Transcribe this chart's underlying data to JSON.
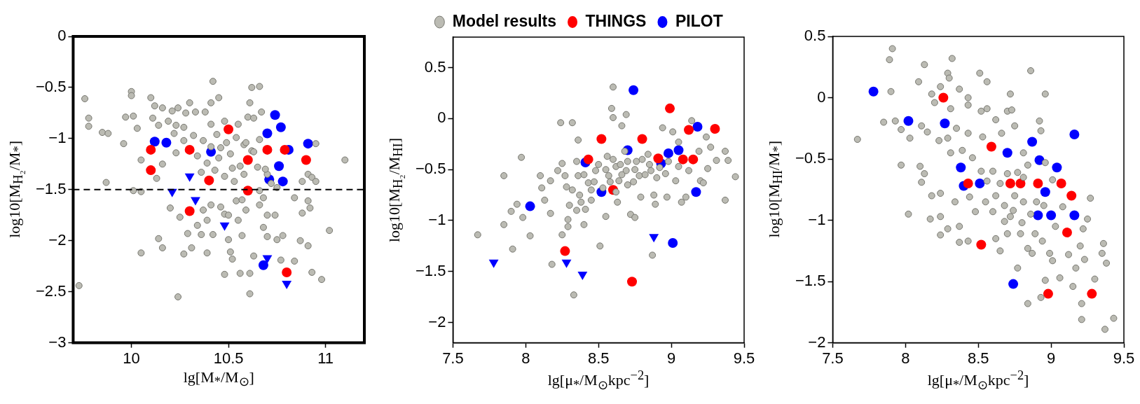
{
  "chart_data": [
    {
      "type": "scatter",
      "xlabel": "lg[M$_{*}$/M$_{⊙}$]",
      "ylabel": "log10[M$_{H₂}$/M$_{*}$]",
      "xlim": [
        9.7,
        11.2
      ],
      "ylim": [
        -3,
        0
      ],
      "xticks": [
        10,
        10.5,
        11
      ],
      "yticks": [
        -3,
        -2.5,
        -2,
        -1.5,
        -1,
        -0.5,
        0
      ],
      "grid": false,
      "legend": false,
      "marker": "circle",
      "ref_lines": [
        {
          "axis": "y",
          "value": -1.5,
          "color": "#000000",
          "line_style": "dashed"
        }
      ],
      "series": [
        {
          "color": "#bbbbb3",
          "x": [
            9.76,
            9.78,
            9.78,
            9.73,
            9.85,
            9.88,
            9.96,
            9.87,
            10.0,
            10.0,
            9.97,
            10.01,
            10.03,
            10.01,
            10.05,
            10.05,
            10.05,
            10.1,
            10.12,
            10.16,
            10.11,
            10.14,
            10.21,
            10.24,
            10.3,
            10.28,
            10.19,
            10.23,
            10.27,
            10.33,
            10.38,
            10.41,
            10.45,
            10.42,
            10.41,
            10.48,
            10.62,
            10.66,
            10.61,
            10.55,
            10.6,
            10.63,
            10.67,
            10.32,
            10.37,
            10.44,
            10.49,
            10.54,
            10.58,
            10.34,
            10.39,
            10.45,
            10.51,
            10.56,
            10.62,
            10.36,
            10.43,
            10.48,
            10.53,
            10.58,
            10.65,
            10.27,
            10.22,
            10.46,
            10.41,
            10.52,
            10.16,
            10.13,
            10.23,
            10.14,
            10.16,
            10.2,
            10.25,
            10.27,
            10.31,
            10.29,
            10.34,
            10.36,
            10.39,
            10.37,
            10.41,
            10.39,
            10.42,
            10.46,
            10.48,
            10.5,
            10.5,
            10.51,
            10.52,
            10.48,
            10.56,
            10.61,
            10.61,
            10.24,
            10.55,
            10.57,
            10.59,
            10.66,
            10.63,
            10.68,
            10.7,
            10.7,
            10.74,
            10.75,
            10.78,
            10.77,
            10.84,
            10.87,
            10.91,
            10.93,
            10.98,
            11.02,
            11.1,
            10.95,
            10.84,
            10.88,
            10.91,
            10.93,
            10.88,
            10.91,
            10.92,
            10.95,
            10.68,
            10.7,
            10.72,
            10.75,
            10.54,
            10.57,
            10.66,
            10.69,
            10.59,
            10.63,
            10.66
          ],
          "values": [
            -0.61,
            -0.8,
            -0.88,
            -2.44,
            -0.94,
            -0.95,
            -1.05,
            -1.43,
            -0.54,
            -0.58,
            -0.79,
            -0.78,
            -0.9,
            -1.51,
            -1.52,
            -1.21,
            -2.12,
            -0.6,
            -0.68,
            -0.7,
            -0.8,
            -0.87,
            -0.73,
            -0.7,
            -0.65,
            -0.75,
            -0.83,
            -0.87,
            -0.89,
            -0.74,
            -0.74,
            -0.65,
            -0.6,
            -0.44,
            -0.86,
            -0.83,
            -0.5,
            -0.49,
            -0.65,
            -0.86,
            -0.79,
            -0.8,
            -0.74,
            -0.97,
            -1.02,
            -0.96,
            -1.04,
            -0.99,
            -1.06,
            -1.17,
            -1.24,
            -1.19,
            -1.15,
            -1.27,
            -1.12,
            -1.33,
            -1.31,
            -1.37,
            -1.42,
            -1.35,
            -1.28,
            -1.02,
            -0.95,
            -1.09,
            -1.08,
            -1.29,
            -1.25,
            -1.39,
            -1.14,
            -1.98,
            -2.07,
            -1.68,
            -1.77,
            -2.13,
            -2.07,
            -1.93,
            -1.85,
            -1.94,
            -2.12,
            -1.7,
            -1.65,
            -1.8,
            -1.94,
            -1.67,
            -1.74,
            -1.75,
            -1.99,
            -2.11,
            -2.18,
            -2.33,
            -2.32,
            -2.32,
            -2.52,
            -2.55,
            -1.8,
            -1.95,
            -1.7,
            -1.65,
            -2.15,
            -1.87,
            -1.96,
            -1.75,
            -1.75,
            -1.99,
            -1.95,
            -2.19,
            -2.2,
            -2.0,
            -2.05,
            -2.31,
            -2.38,
            -1.9,
            -1.21,
            -1.05,
            -1.58,
            -1.42,
            -1.35,
            -1.38,
            -1.73,
            -1.61,
            -1.68,
            -1.42,
            -1.58,
            -1.35,
            -1.44,
            -1.48,
            -1.61,
            -1.6,
            -1.51,
            -1.3,
            -1.04,
            -1.13,
            -1.01
          ]
        },
        {
          "color": "#ff0000",
          "x": [
            10.1,
            10.1,
            10.3,
            10.4,
            10.5,
            10.6,
            10.6,
            10.3,
            10.7,
            10.79,
            10.9,
            10.8
          ],
          "values": [
            -1.11,
            -1.31,
            -1.11,
            -1.41,
            -0.91,
            -1.21,
            -1.51,
            -1.71,
            -1.11,
            -1.11,
            -1.21,
            -2.31
          ]
        },
        {
          "color": "#0000ff",
          "x": [
            10.12,
            10.18,
            10.41,
            10.74,
            10.77,
            10.7,
            10.81,
            10.91,
            10.76,
            10.71,
            10.78,
            10.68
          ],
          "values": [
            -1.03,
            -1.04,
            -1.13,
            -0.77,
            -0.89,
            -0.95,
            -1.11,
            -1.05,
            -1.27,
            -1.4,
            -1.42,
            -2.24
          ]
        },
        {
          "color": "#0000ff",
          "marker": "triangle",
          "x": [
            10.3,
            10.21,
            10.33,
            10.48,
            10.7,
            10.8
          ],
          "values": [
            -1.37,
            -1.52,
            -1.6,
            -1.85,
            -2.17,
            -2.42
          ]
        }
      ]
    },
    {
      "type": "scatter",
      "xlabel": "lg[μ$_{*}$/M$_{⊙}$kpc$^{−2}$]",
      "ylabel": "log10[M$_{H₂}$/M$_{HI}$]",
      "xlim": [
        7.5,
        9.5
      ],
      "ylim": [
        -2.2,
        0.8
      ],
      "xticks": [
        7.5,
        8,
        8.5,
        9,
        9.5
      ],
      "yticks": [
        -2,
        -1.5,
        -1,
        -0.5,
        0,
        0.5
      ],
      "grid": false,
      "legend": "top",
      "marker": "circle",
      "series": [
        {
          "name": "Model results",
          "color": "#bbbbb3",
          "x": [
            8.6,
            8.59,
            8.6,
            8.69,
            8.66,
            8.24,
            8.32,
            8.36,
            7.97,
            7.85,
            7.67,
            7.85,
            7.91,
            7.98,
            8.03,
            7.9,
            7.94,
            8.1,
            8.11,
            8.13,
            8.17,
            8.17,
            8.22,
            8.25,
            8.27,
            8.28,
            8.25,
            8.18,
            8.29,
            8.29,
            8.33,
            8.4,
            8.35,
            8.36,
            8.37,
            8.41,
            8.43,
            8.45,
            8.48,
            8.51,
            8.55,
            8.56,
            8.57,
            8.62,
            8.64,
            8.63,
            8.68,
            8.69,
            8.7,
            8.72,
            8.75,
            8.76,
            8.78,
            8.79,
            8.84,
            8.86,
            8.88,
            8.89,
            8.87,
            8.94,
            8.96,
            8.97,
            9.01,
            9.03,
            9.05,
            9.07,
            9.1,
            9.14,
            9.12,
            9.19,
            9.2,
            9.24,
            9.25,
            9.27,
            9.31,
            9.37,
            9.39,
            9.44,
            9.37,
            9.22,
            8.5,
            8.55,
            8.6,
            8.65,
            8.7,
            8.75,
            8.8,
            8.85,
            8.58,
            8.66,
            8.74,
            8.82,
            8.9,
            8.47,
            8.53,
            8.62,
            8.92,
            8.98,
            9.05,
            8.4,
            8.45,
            8.32,
            8.3,
            8.35,
            8.38
          ],
          "values": [
            0.31,
            0.1,
            0.01,
            0.04,
            -0.07,
            -0.04,
            -0.04,
            -0.21,
            -0.38,
            -0.56,
            -1.14,
            -1.04,
            -1.28,
            -0.97,
            -1.15,
            -0.91,
            -0.84,
            -0.56,
            -0.68,
            -0.8,
            -0.61,
            -0.93,
            -0.51,
            -0.44,
            -0.56,
            -0.67,
            -1.14,
            -1.43,
            -0.99,
            -1.06,
            -1.73,
            -1.04,
            -0.42,
            -0.56,
            -0.75,
            -0.89,
            -0.63,
            -0.8,
            -0.51,
            -1.25,
            -0.96,
            -0.37,
            -0.56,
            -0.47,
            -0.61,
            -0.82,
            -0.32,
            -0.51,
            -0.65,
            -0.94,
            -0.97,
            -0.42,
            -0.56,
            -0.77,
            -0.35,
            -0.51,
            -0.75,
            -0.84,
            -1.34,
            -0.09,
            -0.54,
            -0.77,
            -0.13,
            -0.61,
            -0.23,
            -0.82,
            -0.77,
            -0.02,
            -0.51,
            -0.32,
            -0.61,
            -0.18,
            -0.49,
            -0.28,
            -0.41,
            -0.32,
            -0.41,
            -0.57,
            -0.8,
            -0.63,
            -0.45,
            -0.5,
            -0.4,
            -0.45,
            -0.42,
            -0.5,
            -0.4,
            -0.45,
            -0.62,
            -0.55,
            -0.62,
            -0.55,
            -0.58,
            -0.62,
            -0.68,
            -0.72,
            -0.48,
            -0.42,
            -0.47,
            -0.55,
            -0.7,
            -0.7,
            -0.85,
            -0.9,
            -0.82
          ]
        },
        {
          "name": "THINGS",
          "color": "#ff0000",
          "x": [
            8.52,
            8.8,
            8.99,
            9.12,
            9.3,
            8.43,
            8.91,
            9.08,
            9.15,
            8.6,
            8.27,
            8.73
          ],
          "values": [
            -0.2,
            -0.2,
            0.1,
            -0.11,
            -0.1,
            -0.4,
            -0.39,
            -0.4,
            -0.4,
            -0.7,
            -1.3,
            -1.6
          ]
        },
        {
          "name": "PILOT",
          "color": "#0000ff",
          "x": [
            8.74,
            9.18,
            8.7,
            8.98,
            9.05,
            8.93,
            8.41,
            8.52,
            9.17,
            8.03,
            9.01
          ],
          "values": [
            0.28,
            -0.08,
            -0.31,
            -0.34,
            -0.31,
            -0.44,
            -0.43,
            -0.72,
            -0.72,
            -0.86,
            -1.22
          ]
        },
        {
          "color": "#0000ff",
          "marker": "triangle",
          "x": [
            7.78,
            8.28,
            8.39,
            8.88
          ],
          "values": [
            -1.41,
            -1.41,
            -1.53,
            -1.16
          ]
        }
      ]
    },
    {
      "type": "scatter",
      "xlabel": "lg[μ$_{*}$/M$_{⊙}$kpc$^{−2}$]",
      "ylabel": "log10[M$_{HI}$/M$_{*}$]",
      "xlim": [
        7.5,
        9.5
      ],
      "ylim": [
        -2,
        0.5
      ],
      "xticks": [
        7.5,
        8,
        8.5,
        9,
        9.5
      ],
      "yticks": [
        -2,
        -1.5,
        -1,
        -0.5,
        0,
        0.5
      ],
      "grid": false,
      "legend": false,
      "marker": "circle",
      "series": [
        {
          "color": "#bbbbb3",
          "x": [
            7.91,
            7.89,
            8.13,
            8.32,
            8.29,
            8.3,
            8.09,
            7.9,
            8.24,
            8.18,
            8.37,
            8.43,
            8.51,
            8.56,
            8.86,
            8.96,
            8.72,
            8.2,
            8.31,
            8.43,
            8.52,
            8.56,
            8.7,
            8.73,
            8.62,
            7.85,
            7.93,
            7.97,
            8.03,
            8.11,
            8.15,
            7.67,
            8.75,
            8.92,
            8.93,
            8.23,
            8.29,
            8.35,
            8.43,
            8.53,
            8.66,
            8.81,
            7.97,
            8.1,
            8.13,
            8.11,
            8.02,
            8.17,
            8.24,
            8.18,
            8.24,
            8.24,
            8.29,
            8.37,
            8.37,
            8.43,
            8.31,
            8.39,
            8.46,
            8.34,
            8.44,
            8.48,
            8.55,
            8.6,
            8.62,
            8.65,
            8.68,
            8.7,
            8.72,
            8.79,
            8.77,
            8.84,
            8.84,
            8.87,
            8.89,
            8.94,
            8.99,
            9.01,
            8.96,
            9.06,
            8.93,
            9.15,
            9.21,
            9.21,
            9.3,
            9.37,
            9.43,
            9.36,
            9.35,
            9.38,
            9.2,
            9.23,
            9.12,
            9.17,
            9.25,
            9.22,
            9.27,
            9.08,
            9.03,
            8.81,
            8.86,
            8.77,
            8.81,
            8.84,
            8.96,
            9.01,
            8.6,
            8.65,
            8.7,
            8.62,
            8.68,
            8.75,
            8.56,
            8.52,
            8.9,
            8.95,
            8.8,
            8.74
          ],
          "values": [
            0.4,
            0.31,
            0.27,
            0.32,
            0.2,
            0.16,
            0.13,
            0.05,
            0.09,
            0.03,
            0.07,
            0.0,
            0.2,
            0.13,
            0.22,
            0.03,
            0.03,
            -0.04,
            -0.09,
            -0.06,
            -0.11,
            -0.09,
            -0.11,
            -0.1,
            -0.18,
            -0.2,
            -0.19,
            -0.26,
            -0.33,
            -0.23,
            -0.28,
            -0.34,
            -0.23,
            -0.19,
            -0.27,
            -0.35,
            -0.33,
            -0.25,
            -0.29,
            -0.32,
            -0.29,
            -0.45,
            -0.55,
            -0.56,
            -0.62,
            -0.69,
            -0.95,
            -0.99,
            -0.97,
            -0.8,
            -0.78,
            -1.12,
            -1.07,
            -1.05,
            -1.18,
            -1.17,
            -0.45,
            -0.43,
            -0.49,
            -0.85,
            -0.81,
            -0.93,
            -0.85,
            -0.93,
            -1.15,
            -1.25,
            -1.01,
            -1.11,
            -0.97,
            -1.11,
            -1.39,
            -1.68,
            -1.23,
            -1.27,
            -1.11,
            -1.17,
            -1.27,
            -1.33,
            -1.49,
            -1.47,
            -1.63,
            -1.54,
            -1.68,
            -1.81,
            -1.48,
            -1.89,
            -1.8,
            -1.19,
            -1.27,
            -1.35,
            -1.21,
            -1.32,
            -1.28,
            -1.39,
            -0.99,
            -1.07,
            -0.82,
            -0.89,
            -1.05,
            -0.85,
            -0.95,
            -0.61,
            -0.65,
            -0.55,
            -0.53,
            -0.67,
            -0.6,
            -0.7,
            -0.62,
            -0.8,
            -0.88,
            -0.8,
            -0.68,
            -0.6,
            -0.85,
            -0.88,
            -1.02,
            -0.92
          ]
        },
        {
          "color": "#ff0000",
          "x": [
            8.26,
            8.59,
            8.43,
            8.72,
            8.79,
            8.91,
            9.07,
            9.14,
            9.11,
            8.52,
            8.98,
            9.28
          ],
          "values": [
            0.0,
            -0.4,
            -0.7,
            -0.7,
            -0.7,
            -0.7,
            -0.7,
            -0.8,
            -1.1,
            -1.2,
            -1.6,
            -1.6
          ]
        },
        {
          "color": "#0000ff",
          "x": [
            7.78,
            8.02,
            8.27,
            9.16,
            8.87,
            8.7,
            8.92,
            9.04,
            8.38,
            8.4,
            8.51,
            8.96,
            8.91,
            9.0,
            9.16,
            8.74
          ],
          "values": [
            0.05,
            -0.19,
            -0.21,
            -0.3,
            -0.36,
            -0.45,
            -0.51,
            -0.57,
            -0.57,
            -0.72,
            -0.7,
            -0.77,
            -0.96,
            -0.96,
            -0.96,
            -1.52
          ]
        }
      ]
    }
  ]
}
